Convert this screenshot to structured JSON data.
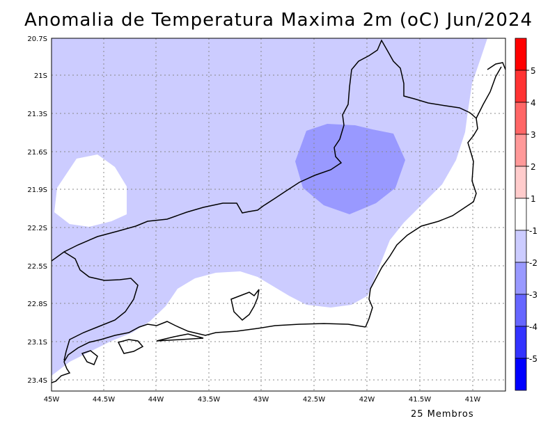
{
  "title": "Anomalia de Temperatura Maxima 2m (oC) Jun/2024",
  "footer": "25 Membros",
  "map": {
    "lat_ticks": [
      "20.7S",
      "21S",
      "21.3S",
      "21.6S",
      "21.9S",
      "22.2S",
      "22.5S",
      "22.8S",
      "23.1S",
      "23.4S"
    ],
    "lon_ticks": [
      "45W",
      "44.5W",
      "44W",
      "43.5W",
      "43W",
      "42.5W",
      "42W",
      "41.5W",
      "41W"
    ],
    "grid": true
  },
  "colorbar": {
    "labels": [
      "5",
      "4",
      "3",
      "2",
      "1",
      "-1",
      "-2",
      "-3",
      "-4",
      "-5"
    ],
    "colors": [
      "#ff0000",
      "#ff3333",
      "#ff6666",
      "#ff9999",
      "#ffcccc",
      "#ffffff",
      "#ccccff",
      "#9999ff",
      "#6666ff",
      "#3333ff",
      "#0000ff"
    ],
    "shading": {
      "minus1_to_minus2": "#ccccff",
      "minus2_to_minus3": "#9999ff"
    }
  }
}
